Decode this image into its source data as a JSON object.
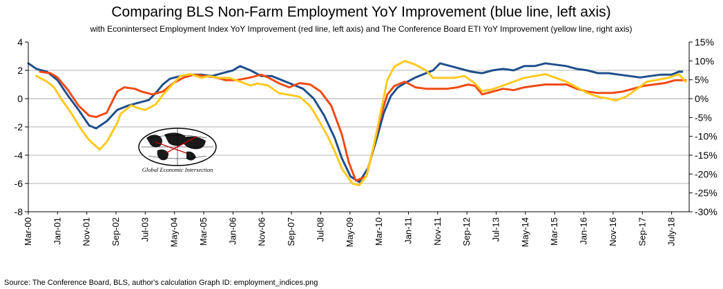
{
  "chart_data": {
    "type": "line",
    "title": "Comparing BLS Non-Farm Employment YoY Improvement (blue line, left axis)",
    "subtitle": "with Econintersect Employment Index YoY Improvement (red line, left axis) and The Conference Board ETI YoY Improvement (yellow line, right axis)",
    "y_left": {
      "ylim": [
        -8,
        4
      ],
      "ticks": [
        "4",
        "2",
        "0",
        "-2",
        "-4",
        "-6",
        "-8"
      ]
    },
    "y_right": {
      "ylim": [
        -30,
        15
      ],
      "ticks": [
        "15%",
        "10%",
        "5%",
        "0%",
        "-5%",
        "-10%",
        "-15%",
        "-20%",
        "-25%",
        "-30%"
      ]
    },
    "x_range": [
      2000.167,
      2019.0
    ],
    "x_ticks": [
      {
        "label": "Mar-00",
        "x": 2000.167
      },
      {
        "label": "Jan-01",
        "x": 2001.0
      },
      {
        "label": "Nov-01",
        "x": 2001.833
      },
      {
        "label": "Sep-02",
        "x": 2002.667
      },
      {
        "label": "Jul-03",
        "x": 2003.5
      },
      {
        "label": "May-04",
        "x": 2004.333
      },
      {
        "label": "Mar-05",
        "x": 2005.167
      },
      {
        "label": "Jan-06",
        "x": 2006.0
      },
      {
        "label": "Nov-06",
        "x": 2006.833
      },
      {
        "label": "Sep-07",
        "x": 2007.667
      },
      {
        "label": "Jul-08",
        "x": 2008.5
      },
      {
        "label": "May-09",
        "x": 2009.333
      },
      {
        "label": "Mar-10",
        "x": 2010.167
      },
      {
        "label": "Jan-11",
        "x": 2011.0
      },
      {
        "label": "Nov-11",
        "x": 2011.833
      },
      {
        "label": "Sep-12",
        "x": 2012.667
      },
      {
        "label": "Jul-13",
        "x": 2013.5
      },
      {
        "label": "May-14",
        "x": 2014.333
      },
      {
        "label": "Mar-15",
        "x": 2015.167
      },
      {
        "label": "Jan-16",
        "x": 2016.0
      },
      {
        "label": "Nov-16",
        "x": 2016.833
      },
      {
        "label": "Sep-17",
        "x": 2017.667
      },
      {
        "label": "July-18",
        "x": 2018.5
      }
    ],
    "series": [
      {
        "name": "BLS Non-Farm Employment YoY (left axis)",
        "color": "#1f4e8c",
        "axis": "left",
        "points": [
          [
            2000.167,
            2.5
          ],
          [
            2000.4,
            2.1
          ],
          [
            2000.7,
            1.9
          ],
          [
            2001.0,
            1.3
          ],
          [
            2001.3,
            0.2
          ],
          [
            2001.6,
            -0.8
          ],
          [
            2001.9,
            -1.9
          ],
          [
            2002.1,
            -2.1
          ],
          [
            2002.4,
            -1.6
          ],
          [
            2002.7,
            -0.8
          ],
          [
            2003.0,
            -0.5
          ],
          [
            2003.3,
            -0.3
          ],
          [
            2003.6,
            -0.1
          ],
          [
            2003.8,
            0.4
          ],
          [
            2004.0,
            1.0
          ],
          [
            2004.2,
            1.4
          ],
          [
            2004.5,
            1.6
          ],
          [
            2004.8,
            1.7
          ],
          [
            2005.1,
            1.7
          ],
          [
            2005.4,
            1.6
          ],
          [
            2005.7,
            1.8
          ],
          [
            2006.0,
            2.0
          ],
          [
            2006.2,
            2.3
          ],
          [
            2006.5,
            2.0
          ],
          [
            2006.8,
            1.6
          ],
          [
            2007.1,
            1.6
          ],
          [
            2007.4,
            1.3
          ],
          [
            2007.7,
            1.0
          ],
          [
            2008.0,
            0.7
          ],
          [
            2008.3,
            0.0
          ],
          [
            2008.6,
            -1.2
          ],
          [
            2008.9,
            -2.8
          ],
          [
            2009.1,
            -4.2
          ],
          [
            2009.35,
            -5.5
          ],
          [
            2009.6,
            -5.9
          ],
          [
            2009.85,
            -4.9
          ],
          [
            2010.1,
            -2.8
          ],
          [
            2010.3,
            -1.0
          ],
          [
            2010.5,
            0.2
          ],
          [
            2010.7,
            0.8
          ],
          [
            2010.9,
            1.1
          ],
          [
            2011.2,
            1.5
          ],
          [
            2011.5,
            1.8
          ],
          [
            2011.7,
            2.0
          ],
          [
            2011.9,
            2.5
          ],
          [
            2012.2,
            2.3
          ],
          [
            2012.5,
            2.1
          ],
          [
            2012.8,
            1.9
          ],
          [
            2013.1,
            1.8
          ],
          [
            2013.4,
            2.0
          ],
          [
            2013.7,
            2.1
          ],
          [
            2014.0,
            2.0
          ],
          [
            2014.3,
            2.3
          ],
          [
            2014.6,
            2.3
          ],
          [
            2014.9,
            2.5
          ],
          [
            2015.2,
            2.4
          ],
          [
            2015.5,
            2.3
          ],
          [
            2015.8,
            2.1
          ],
          [
            2016.1,
            2.0
          ],
          [
            2016.4,
            1.8
          ],
          [
            2016.7,
            1.8
          ],
          [
            2017.0,
            1.7
          ],
          [
            2017.3,
            1.6
          ],
          [
            2017.6,
            1.5
          ],
          [
            2017.9,
            1.6
          ],
          [
            2018.2,
            1.7
          ],
          [
            2018.5,
            1.7
          ],
          [
            2018.7,
            1.9
          ],
          [
            2018.8,
            1.9
          ]
        ]
      },
      {
        "name": "Econintersect Employment Index YoY (left axis)",
        "color": "#f04a14",
        "axis": "left",
        "points": [
          [
            2000.5,
            1.9
          ],
          [
            2000.8,
            1.8
          ],
          [
            2001.0,
            1.5
          ],
          [
            2001.3,
            0.6
          ],
          [
            2001.6,
            -0.5
          ],
          [
            2001.9,
            -1.2
          ],
          [
            2002.1,
            -1.3
          ],
          [
            2002.4,
            -1.0
          ],
          [
            2002.7,
            0.5
          ],
          [
            2002.9,
            0.8
          ],
          [
            2003.2,
            0.7
          ],
          [
            2003.4,
            0.5
          ],
          [
            2003.7,
            0.3
          ],
          [
            2004.0,
            0.5
          ],
          [
            2004.3,
            1.1
          ],
          [
            2004.6,
            1.5
          ],
          [
            2004.9,
            1.7
          ],
          [
            2005.2,
            1.6
          ],
          [
            2005.5,
            1.5
          ],
          [
            2005.8,
            1.3
          ],
          [
            2006.1,
            1.3
          ],
          [
            2006.5,
            1.5
          ],
          [
            2006.8,
            1.7
          ],
          [
            2007.0,
            1.5
          ],
          [
            2007.3,
            1.1
          ],
          [
            2007.6,
            0.8
          ],
          [
            2007.9,
            1.1
          ],
          [
            2008.2,
            1.0
          ],
          [
            2008.5,
            0.5
          ],
          [
            2008.8,
            -0.5
          ],
          [
            2009.1,
            -2.5
          ],
          [
            2009.3,
            -4.5
          ],
          [
            2009.5,
            -5.8
          ],
          [
            2009.8,
            -5.5
          ],
          [
            2010.0,
            -3.5
          ],
          [
            2010.2,
            -1.3
          ],
          [
            2010.4,
            0.3
          ],
          [
            2010.6,
            0.9
          ],
          [
            2010.9,
            1.2
          ],
          [
            2011.2,
            0.8
          ],
          [
            2011.5,
            0.7
          ],
          [
            2011.8,
            0.7
          ],
          [
            2012.1,
            0.7
          ],
          [
            2012.4,
            0.8
          ],
          [
            2012.7,
            1.0
          ],
          [
            2012.9,
            0.9
          ],
          [
            2013.1,
            0.3
          ],
          [
            2013.4,
            0.5
          ],
          [
            2013.7,
            0.7
          ],
          [
            2014.0,
            0.6
          ],
          [
            2014.3,
            0.8
          ],
          [
            2014.6,
            0.9
          ],
          [
            2014.9,
            1.0
          ],
          [
            2015.2,
            1.0
          ],
          [
            2015.5,
            1.0
          ],
          [
            2015.8,
            0.7
          ],
          [
            2016.1,
            0.5
          ],
          [
            2016.4,
            0.4
          ],
          [
            2016.8,
            0.4
          ],
          [
            2017.1,
            0.5
          ],
          [
            2017.4,
            0.7
          ],
          [
            2017.7,
            0.9
          ],
          [
            2018.0,
            1.0
          ],
          [
            2018.3,
            1.1
          ],
          [
            2018.6,
            1.3
          ],
          [
            2018.9,
            1.3
          ]
        ]
      },
      {
        "name": "Conference Board ETI YoY (right axis)",
        "color": "#ffc91f",
        "axis": "right",
        "points": [
          [
            2000.4,
            6.0
          ],
          [
            2000.7,
            4.5
          ],
          [
            2000.9,
            3.0
          ],
          [
            2001.1,
            0.0
          ],
          [
            2001.4,
            -4.0
          ],
          [
            2001.7,
            -8.5
          ],
          [
            2001.9,
            -11.0
          ],
          [
            2002.2,
            -13.5
          ],
          [
            2002.4,
            -11.5
          ],
          [
            2002.7,
            -6.5
          ],
          [
            2002.8,
            -4.0
          ],
          [
            2003.1,
            -1.8
          ],
          [
            2003.3,
            -2.5
          ],
          [
            2003.5,
            -3.0
          ],
          [
            2003.8,
            -1.5
          ],
          [
            2004.0,
            1.0
          ],
          [
            2004.3,
            4.0
          ],
          [
            2004.5,
            6.0
          ],
          [
            2004.8,
            6.5
          ],
          [
            2005.1,
            5.5
          ],
          [
            2005.3,
            6.0
          ],
          [
            2005.6,
            5.5
          ],
          [
            2005.9,
            5.5
          ],
          [
            2006.2,
            4.5
          ],
          [
            2006.5,
            3.5
          ],
          [
            2006.7,
            4.0
          ],
          [
            2007.0,
            3.5
          ],
          [
            2007.3,
            1.5
          ],
          [
            2007.6,
            1.0
          ],
          [
            2007.9,
            0.5
          ],
          [
            2008.2,
            -2.0
          ],
          [
            2008.4,
            -5.0
          ],
          [
            2008.7,
            -10.0
          ],
          [
            2008.9,
            -14.0
          ],
          [
            2009.1,
            -18.5
          ],
          [
            2009.4,
            -22.5
          ],
          [
            2009.6,
            -23.0
          ],
          [
            2009.8,
            -20.5
          ],
          [
            2010.0,
            -13.0
          ],
          [
            2010.2,
            -4.0
          ],
          [
            2010.4,
            5.0
          ],
          [
            2010.6,
            8.5
          ],
          [
            2010.9,
            10.0
          ],
          [
            2011.2,
            9.0
          ],
          [
            2011.5,
            7.5
          ],
          [
            2011.7,
            5.5
          ],
          [
            2012.0,
            5.5
          ],
          [
            2012.3,
            5.5
          ],
          [
            2012.6,
            6.0
          ],
          [
            2012.9,
            4.0
          ],
          [
            2013.1,
            2.0
          ],
          [
            2013.4,
            2.5
          ],
          [
            2013.7,
            3.5
          ],
          [
            2014.0,
            4.5
          ],
          [
            2014.3,
            5.5
          ],
          [
            2014.6,
            6.0
          ],
          [
            2014.9,
            6.5
          ],
          [
            2015.2,
            5.5
          ],
          [
            2015.5,
            4.5
          ],
          [
            2015.8,
            3.0
          ],
          [
            2016.1,
            1.5
          ],
          [
            2016.4,
            0.5
          ],
          [
            2016.7,
            0.0
          ],
          [
            2016.9,
            -0.5
          ],
          [
            2017.2,
            0.5
          ],
          [
            2017.5,
            2.5
          ],
          [
            2017.8,
            4.5
          ],
          [
            2018.1,
            5.0
          ],
          [
            2018.4,
            5.5
          ],
          [
            2018.7,
            6.5
          ],
          [
            2018.9,
            4.5
          ]
        ]
      }
    ],
    "footer": "Source: The Conference Board, BLS, author's calculation     Graph ID: employment_indices.png",
    "logo_text": "Global Economic Intersection",
    "colors": {
      "axis": "#000000",
      "grid": "#b3b3b3",
      "plot_bg": "#ffffff"
    }
  }
}
